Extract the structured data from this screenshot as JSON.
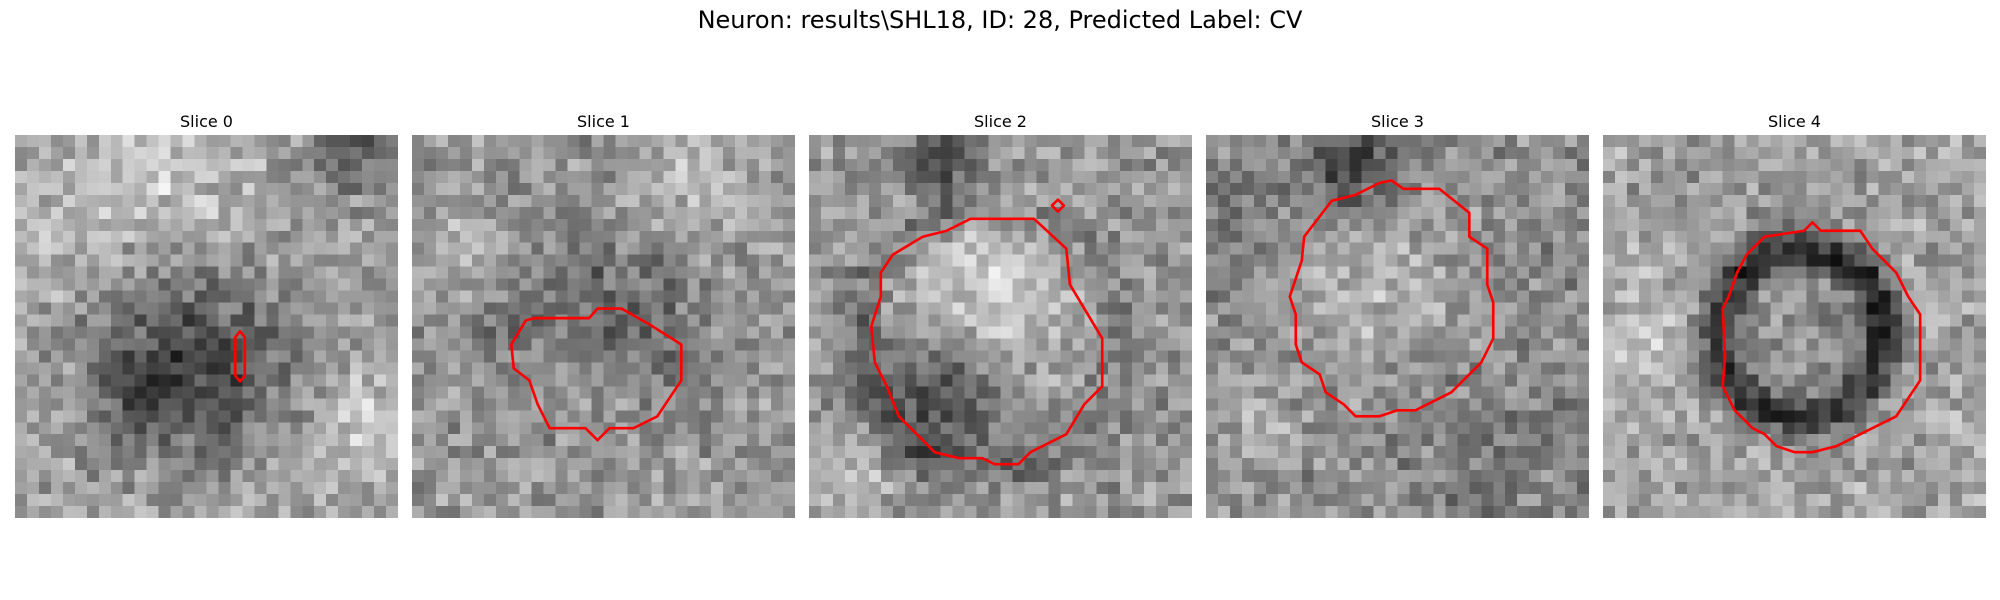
{
  "figure": {
    "title": "Neuron: results\\SHL18, ID: 28, Predicted Label: CV",
    "contour_color": "#ff0000"
  },
  "panels": [
    {
      "title": "Slice 0",
      "contour_count": 1
    },
    {
      "title": "Slice 1",
      "contour_count": 1
    },
    {
      "title": "Slice 2",
      "contour_count": 2
    },
    {
      "title": "Slice 3",
      "contour_count": 1
    },
    {
      "title": "Slice 4",
      "contour_count": 1
    }
  ]
}
